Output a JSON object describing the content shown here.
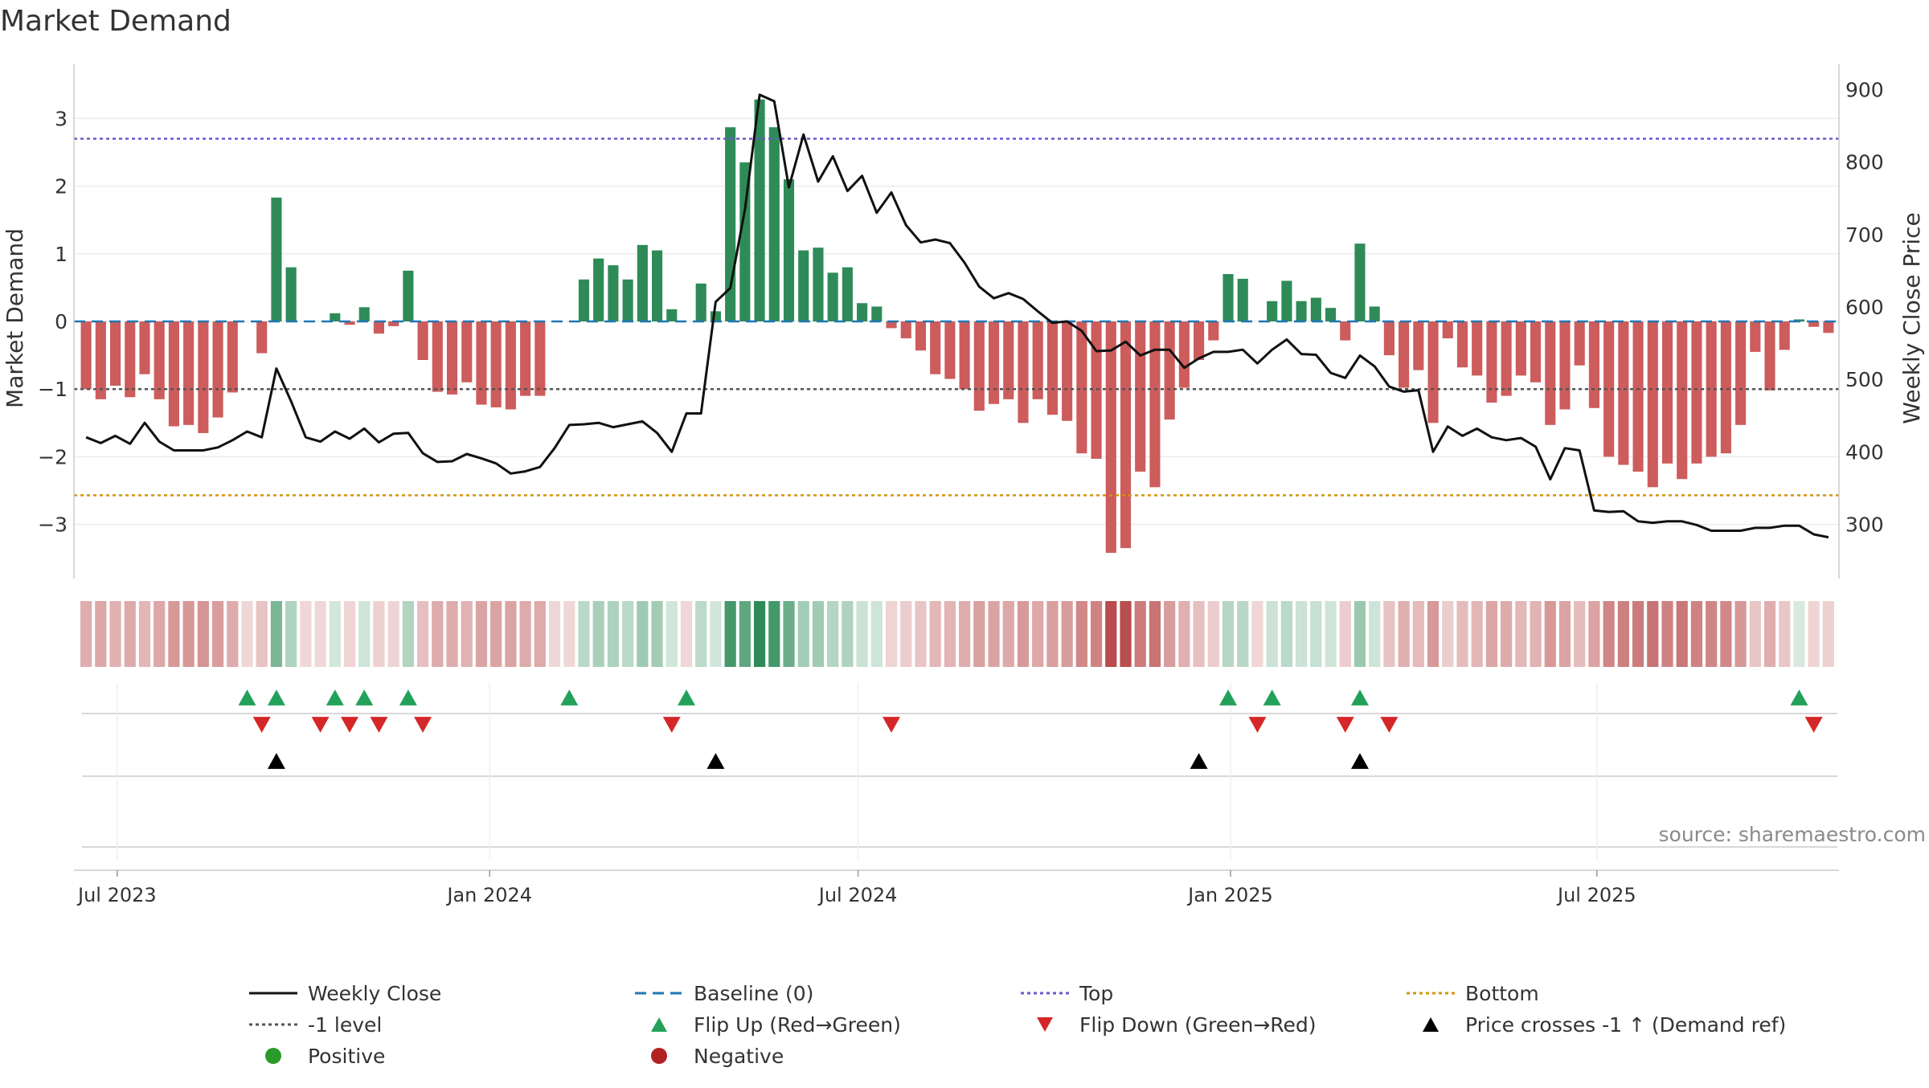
{
  "colors": {
    "positive": "#2e8b57",
    "negative": "#cd5c5c",
    "price": "#111111",
    "baseline": "#1f77b4",
    "top": "#6a5acd",
    "bottom": "#d4950c",
    "minus_one": "#555555",
    "flip_up": "#23a15a",
    "flip_down": "#d62728",
    "price_cross": "#000000",
    "legend_positive": "#2a9a2a",
    "legend_negative": "#b22222"
  },
  "chart_data": {
    "type": "bar",
    "title": "Market Demand",
    "ylabel": "Market Demand",
    "y2label": "Weekly Close Price",
    "ylim": [
      -3.8,
      3.8
    ],
    "y2lim": [
      225,
      935
    ],
    "yticks": [
      "3",
      "2",
      "1",
      "0",
      "−1",
      "−2",
      "−3"
    ],
    "yticks_values": [
      3,
      2,
      1,
      0,
      -1,
      -2,
      -3
    ],
    "y2ticks": [
      "900",
      "800",
      "700",
      "600",
      "500",
      "400",
      "300"
    ],
    "y2ticks_values": [
      900,
      800,
      700,
      600,
      500,
      400,
      300
    ],
    "xaxis_date_range": [
      "2023-06-12",
      "2025-10-27"
    ],
    "xtick_labels": [
      "Jul 2023",
      "Jan 2024",
      "Jul 2024",
      "Jan 2025",
      "Jul 2025"
    ],
    "xtick_dates": [
      "2023-07-01",
      "2024-01-01",
      "2024-07-01",
      "2025-01-01",
      "2025-07-01"
    ],
    "reference_lines": {
      "top": 2.7,
      "bottom": -2.57,
      "minus_one": -1,
      "baseline": 0
    },
    "grid": true,
    "legend_position": "bottom",
    "start_date": "2023-06-12",
    "series": [
      {
        "name": "Market Demand",
        "values": [
          -1.0,
          -1.15,
          -0.95,
          -1.12,
          -0.78,
          -1.15,
          -1.55,
          -1.53,
          -1.65,
          -1.42,
          -1.05,
          0.0,
          -0.47,
          1.83,
          0.8,
          0.0,
          0.0,
          0.12,
          -0.05,
          0.21,
          -0.18,
          -0.07,
          0.75,
          -0.57,
          -1.04,
          -1.08,
          -0.9,
          -1.23,
          -1.27,
          -1.3,
          -1.1,
          -1.1,
          0.0,
          0.0,
          0.62,
          0.93,
          0.83,
          0.62,
          1.13,
          1.05,
          0.18,
          0.0,
          0.56,
          0.15,
          2.87,
          2.35,
          3.28,
          2.87,
          2.1,
          1.05,
          1.09,
          0.72,
          0.8,
          0.27,
          0.22,
          -0.1,
          -0.25,
          -0.43,
          -0.78,
          -0.85,
          -1.0,
          -1.32,
          -1.22,
          -1.15,
          -1.5,
          -1.15,
          -1.38,
          -1.47,
          -1.95,
          -2.03,
          -3.42,
          -3.35,
          -2.22,
          -2.45,
          -1.45,
          -0.98,
          -0.57,
          -0.28,
          0.7,
          0.63,
          0.0,
          0.3,
          0.6,
          0.3,
          0.35,
          0.2,
          -0.28,
          1.15,
          0.22,
          -0.5,
          -0.98,
          -0.72,
          -1.5,
          -0.25,
          -0.68,
          -0.8,
          -1.2,
          -1.1,
          -0.8,
          -0.9,
          -1.53,
          -1.3,
          -0.65,
          -1.28,
          -2.0,
          -2.12,
          -2.22,
          -2.45,
          -2.1,
          -2.33,
          -2.1,
          -2.0,
          -1.95,
          -1.53,
          -0.45,
          -1.02,
          -0.42,
          0.03,
          -0.08,
          -0.17
        ]
      },
      {
        "name": "Weekly Close",
        "values": [
          420,
          412,
          422,
          411,
          440,
          414,
          402,
          402,
          402,
          406,
          416,
          428,
          420,
          515,
          470,
          420,
          414,
          428,
          418,
          432,
          413,
          425,
          426,
          398,
          386,
          387,
          397,
          391,
          384,
          370,
          373,
          379,
          405,
          437,
          438,
          440,
          434,
          438,
          442,
          426,
          400,
          453,
          453,
          607,
          626,
          735,
          893,
          884,
          765,
          838,
          773,
          808,
          760,
          781,
          730,
          758,
          713,
          689,
          693,
          688,
          661,
          628,
          612,
          619,
          611,
          594,
          578,
          580,
          567,
          539,
          540,
          552,
          533,
          541,
          541,
          516,
          529,
          538,
          538,
          541,
          522,
          541,
          555,
          535,
          534,
          509,
          502,
          533,
          518,
          490,
          483,
          485,
          400,
          435,
          422,
          432,
          420,
          416,
          419,
          407,
          362,
          405,
          402,
          319,
          317,
          318,
          304,
          302,
          304,
          304,
          299,
          291,
          291,
          291,
          295,
          295,
          298,
          298,
          286,
          282
        ]
      }
    ],
    "heat_strip_note": "per-week tint scaled by demand value",
    "signals": {
      "flip_up_indices": [
        11,
        13,
        17,
        19,
        22,
        33,
        41,
        78,
        81,
        87,
        117
      ],
      "flip_down_indices": [
        12,
        16,
        18,
        20,
        23,
        40,
        55,
        80,
        86,
        89,
        118
      ],
      "price_cross_indices": [
        13,
        43,
        76,
        87
      ]
    },
    "source_text": "source: sharemaestro.com",
    "legend": [
      {
        "label": "Weekly Close",
        "kind": "line-solid",
        "color": "#111111"
      },
      {
        "label": "Baseline (0)",
        "kind": "line-dash",
        "color": "#1f77b4"
      },
      {
        "label": "Top",
        "kind": "line-dot",
        "color": "#6a5acd"
      },
      {
        "label": "Bottom",
        "kind": "line-dot",
        "color": "#d4950c"
      },
      {
        "label": "-1 level",
        "kind": "line-dot",
        "color": "#555555"
      },
      {
        "label": "Flip Up (Red→Green)",
        "kind": "tri-up",
        "color": "#23a15a"
      },
      {
        "label": "Flip Down (Green→Red)",
        "kind": "tri-down",
        "color": "#d62728"
      },
      {
        "label": "Price crosses -1 ↑ (Demand ref)",
        "kind": "tri-up",
        "color": "#000000"
      },
      {
        "label": "Positive",
        "kind": "dot",
        "color": "#2a9a2a"
      },
      {
        "label": "Negative",
        "kind": "dot",
        "color": "#b22222"
      }
    ]
  }
}
